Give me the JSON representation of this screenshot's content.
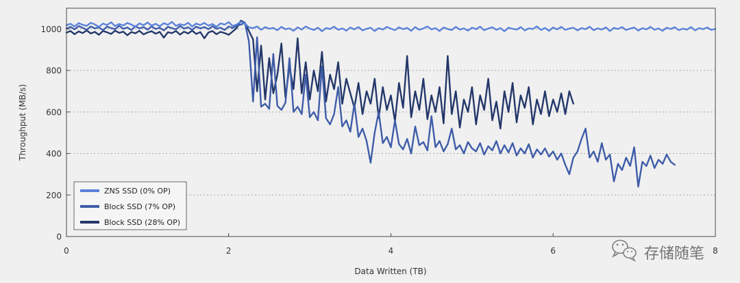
{
  "chart_data": {
    "type": "line",
    "xlabel": "Data Written (TB)",
    "ylabel": "Throughput (MB/s)",
    "xlim": [
      0,
      8
    ],
    "ylim": [
      0,
      1100
    ],
    "x_ticks": [
      0,
      2,
      4,
      6,
      8
    ],
    "y_ticks": [
      0,
      200,
      400,
      600,
      800,
      1000
    ],
    "grid": {
      "y": true,
      "x": false
    },
    "legend": {
      "position": "lower-left"
    },
    "x": [
      0,
      0.05,
      0.1,
      0.15,
      0.2,
      0.25,
      0.3,
      0.35,
      0.4,
      0.45,
      0.5,
      0.55,
      0.6,
      0.65,
      0.7,
      0.75,
      0.8,
      0.85,
      0.9,
      0.95,
      1,
      1.05,
      1.1,
      1.15,
      1.2,
      1.25,
      1.3,
      1.35,
      1.4,
      1.45,
      1.5,
      1.55,
      1.6,
      1.65,
      1.7,
      1.75,
      1.8,
      1.85,
      1.9,
      1.95,
      2,
      2.05,
      2.1,
      2.15,
      2.2,
      2.25,
      2.3,
      2.35,
      2.4,
      2.45,
      2.5,
      2.55,
      2.6,
      2.65,
      2.7,
      2.75,
      2.8,
      2.85,
      2.9,
      2.95,
      3,
      3.05,
      3.1,
      3.15,
      3.2,
      3.25,
      3.3,
      3.35,
      3.4,
      3.45,
      3.5,
      3.55,
      3.6,
      3.65,
      3.7,
      3.75,
      3.8,
      3.85,
      3.9,
      3.95,
      4,
      4.05,
      4.1,
      4.15,
      4.2,
      4.25,
      4.3,
      4.35,
      4.4,
      4.45,
      4.5,
      4.55,
      4.6,
      4.65,
      4.7,
      4.75,
      4.8,
      4.85,
      4.9,
      4.95,
      5,
      5.05,
      5.1,
      5.15,
      5.2,
      5.25,
      5.3,
      5.35,
      5.4,
      5.45,
      5.5,
      5.55,
      5.6,
      5.65,
      5.7,
      5.75,
      5.8,
      5.85,
      5.9,
      5.95,
      6,
      6.05,
      6.1,
      6.15,
      6.2,
      6.25,
      6.3,
      6.35,
      6.4,
      6.45,
      6.5,
      6.55,
      6.6,
      6.65,
      6.7,
      6.75,
      6.8,
      6.85,
      6.9,
      6.95,
      7,
      7.05,
      7.1,
      7.15,
      7.2,
      7.25,
      7.3,
      7.35,
      7.4,
      7.45,
      7.5,
      7.55,
      7.6,
      7.65,
      7.7,
      7.75,
      7.8,
      7.85,
      7.9,
      7.95,
      8
    ],
    "series": [
      {
        "name": "ZNS SSD (0% OP)",
        "color": "#5a82d9",
        "values": [
          1018,
          1025,
          1012,
          1028,
          1020,
          1015,
          1030,
          1022,
          1010,
          1026,
          1019,
          1032,
          1014,
          1024,
          1017,
          1029,
          1021,
          1011,
          1027,
          1018,
          1031,
          1016,
          1025,
          1013,
          1028,
          1020,
          1034,
          1015,
          1023,
          1018,
          1030,
          1012,
          1026,
          1019,
          1029,
          1016,
          1024,
          1010,
          1027,
          1021,
          1033,
          1014,
          1022,
          1035,
          1026,
          1008,
          1004,
          1012,
          996,
          1009,
          1001,
          1005,
          994,
          1010,
          999,
          1003,
          991,
          1008,
          997,
          1012,
          1002,
          995,
          1006,
          989,
          1004,
          1000,
          1011,
          996,
          1003,
          992,
          1007,
          998,
          1009,
          993,
          1001,
          1006,
          990,
          1004,
          997,
          1010,
          1002,
          994,
          1008,
          999,
          1005,
          991,
          1009,
          996,
          1003,
          1012,
          998,
          1004,
          990,
          1007,
          1000,
          995,
          1010,
          997,
          1003,
          992,
          1006,
          999,
          1011,
          994,
          1002,
          1008,
          996,
          1004,
          989,
          1006,
          1001,
          997,
          1009,
          993,
          1003,
          1000,
          1012,
          995,
          1005,
          991,
          1007,
          998,
          1010,
          996,
          1002,
          1006,
          993,
          1004,
          999,
          1011,
          994,
          1003,
          997,
          1008,
          990,
          1005,
          1000,
          1009,
          995,
          1002,
          1007,
          992,
          1004,
          998,
          1010,
          996,
          1003,
          991,
          1006,
          1000,
          1008,
          994,
          1002,
          997,
          1009,
          993,
          1004,
          999,
          1007,
          995,
          1001
        ]
      },
      {
        "name": "Block SSD (7% OP)",
        "color": "#3e5ca8",
        "values": [
          1002,
          1010,
          998,
          1014,
          1005,
          996,
          1012,
          1003,
          1008,
          994,
          1011,
          1004,
          999,
          1015,
          1001,
          1007,
          995,
          1013,
          1003,
          1009,
          997,
          1012,
          1000,
          1006,
          993,
          1010,
          1004,
          998,
          1014,
          1002,
          1008,
          996,
          1011,
          1003,
          1009,
          999,
          1013,
          1001,
          1006,
          995,
          1012,
          1004,
          1016,
          1021,
          1030,
          940,
          650,
          960,
          625,
          640,
          615,
          880,
          630,
          610,
          645,
          860,
          600,
          625,
          590,
          780,
          575,
          600,
          560,
          820,
          570,
          540,
          590,
          720,
          530,
          560,
          505,
          640,
          480,
          520,
          460,
          355,
          500,
          600,
          450,
          480,
          430,
          560,
          445,
          420,
          470,
          400,
          530,
          440,
          455,
          415,
          580,
          430,
          460,
          410,
          445,
          520,
          420,
          440,
          400,
          455,
          425,
          410,
          450,
          395,
          435,
          415,
          460,
          400,
          440,
          405,
          450,
          390,
          425,
          400,
          445,
          380,
          420,
          395,
          425,
          385,
          410,
          370,
          400,
          345,
          300,
          380,
          410,
          470,
          520,
          380,
          410,
          360,
          450,
          370,
          395,
          265,
          350,
          320,
          380,
          340,
          430,
          240,
          360,
          340,
          390,
          330,
          370,
          350,
          395,
          360,
          345,
          null,
          null,
          null,
          null,
          null,
          null,
          null,
          null,
          null,
          null
        ]
      },
      {
        "name": "Block SSD (28% OP)",
        "color": "#233769",
        "values": [
          982,
          990,
          975,
          988,
          980,
          993,
          978,
          986,
          972,
          990,
          984,
          976,
          992,
          981,
          987,
          970,
          985,
          979,
          991,
          974,
          983,
          989,
          977,
          986,
          958,
          984,
          980,
          990,
          973,
          987,
          978,
          992,
          976,
          985,
          955,
          983,
          990,
          975,
          986,
          980,
          972,
          988,
          1005,
          1040,
          1030,
          990,
          950,
          700,
          920,
          660,
          860,
          690,
          780,
          930,
          670,
          820,
          710,
          955,
          690,
          840,
          660,
          800,
          700,
          890,
          650,
          780,
          710,
          840,
          640,
          760,
          690,
          620,
          740,
          590,
          700,
          640,
          760,
          570,
          720,
          610,
          680,
          555,
          740,
          620,
          870,
          575,
          700,
          610,
          760,
          565,
          680,
          600,
          720,
          545,
          870,
          590,
          700,
          525,
          660,
          600,
          720,
          540,
          680,
          610,
          760,
          560,
          650,
          520,
          700,
          600,
          740,
          550,
          680,
          620,
          720,
          540,
          660,
          590,
          700,
          580,
          660,
          600,
          690,
          590,
          700,
          640,
          null,
          null,
          null,
          null,
          null,
          null,
          null,
          null,
          null,
          null,
          null,
          null,
          null,
          null,
          null,
          null,
          null,
          null,
          null,
          null,
          null,
          null,
          null,
          null,
          null,
          null,
          null,
          null,
          null,
          null,
          null,
          null,
          null,
          null,
          null
        ]
      }
    ]
  },
  "watermark": {
    "text": "存储随笔",
    "icon": "wechat-icon"
  }
}
